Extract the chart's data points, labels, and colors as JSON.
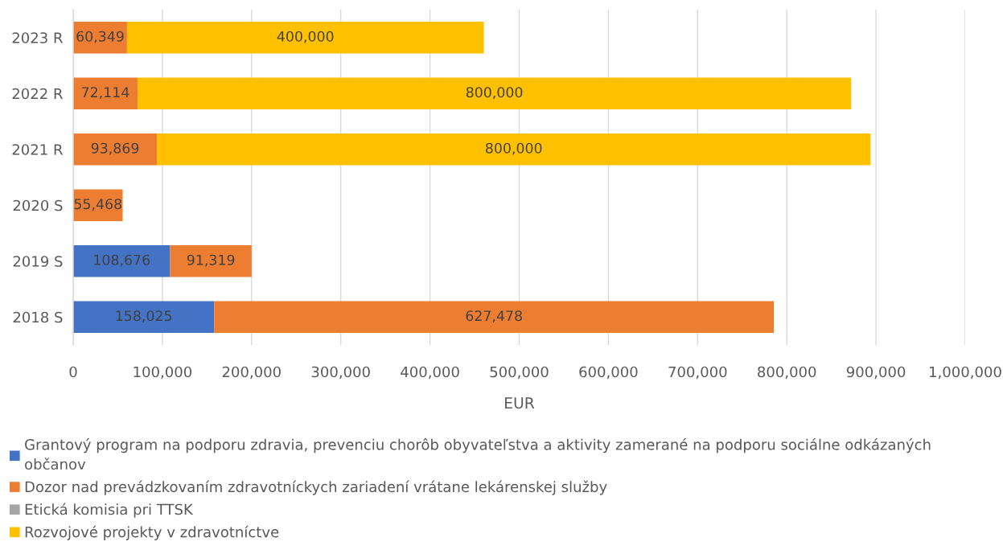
{
  "chart_data": {
    "type": "bar",
    "orientation": "horizontal",
    "stacked": true,
    "categories": [
      "2023 R",
      "2022 R",
      "2021 R",
      "2020 S",
      "2019 S",
      "2018 S"
    ],
    "series": [
      {
        "name": "Grantový program na podporu zdravia, prevenciu chorôb obyvateľstva a aktivity zamerané na podporu sociálne odkázaných občanov",
        "color": "#4472c4",
        "values": [
          null,
          null,
          null,
          null,
          108676,
          158025
        ],
        "value_labels": [
          null,
          null,
          null,
          null,
          "108,676",
          "158,025"
        ]
      },
      {
        "name": "Dozor nad prevádzkovaním zdravotníckych zariadení vrátane lekárenskej služby",
        "color": "#ed7d31",
        "values": [
          60349,
          72114,
          93869,
          55468,
          91319,
          627478
        ],
        "value_labels": [
          "60,349",
          "72,114",
          "93,869",
          "55,468",
          "91,319",
          "627,478"
        ]
      },
      {
        "name": "Etická komisia pri TTSK",
        "color": "#a5a5a5",
        "values": [
          null,
          null,
          null,
          null,
          null,
          null
        ]
      },
      {
        "name": "Rozvojové projekty v zdravotníctve",
        "color": "#ffc000",
        "values": [
          400000,
          800000,
          800000,
          null,
          null,
          null
        ],
        "value_labels": [
          "400,000",
          "800,000",
          "800,000",
          null,
          null,
          null
        ]
      }
    ],
    "xlabel": "EUR",
    "xlim": [
      0,
      1000000
    ],
    "xticks": [
      0,
      {
        "value": 100000,
        "label": "100,000"
      },
      {
        "value": 200000,
        "label": "200,000"
      },
      {
        "value": 300000,
        "label": "300,000"
      },
      {
        "value": 400000,
        "label": "400,000"
      },
      {
        "value": 500000,
        "label": "500,000"
      },
      {
        "value": 600000,
        "label": "600,000"
      },
      {
        "value": 700000,
        "label": "700,000"
      },
      {
        "value": 800000,
        "label": "800,000"
      },
      {
        "value": 900000,
        "label": "900,000"
      },
      {
        "value": 1000000,
        "label": "1,000,000"
      }
    ],
    "grid": "x",
    "legend": "bottom"
  }
}
